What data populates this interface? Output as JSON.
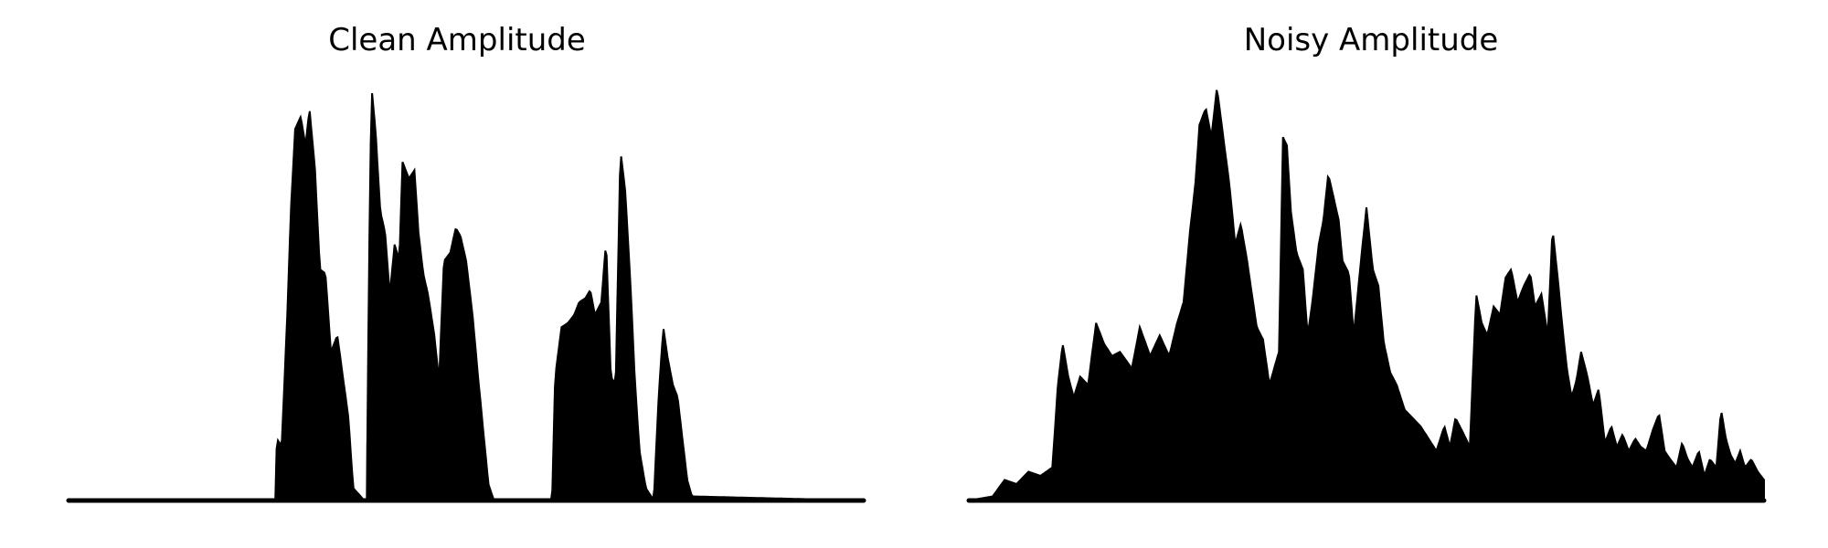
{
  "chart_data": [
    {
      "type": "area",
      "title": "Clean Amplitude",
      "axes_visible": false,
      "grid": false,
      "color": "#000000",
      "xlim": [
        0,
        1
      ],
      "ylim": [
        0,
        1
      ],
      "envelope": [
        [
          0.0,
          0.0
        ],
        [
          0.26,
          0.0
        ],
        [
          0.262,
          0.15
        ],
        [
          0.268,
          0.13
        ],
        [
          0.275,
          0.45
        ],
        [
          0.28,
          0.72
        ],
        [
          0.285,
          0.9
        ],
        [
          0.292,
          0.93
        ],
        [
          0.298,
          0.86
        ],
        [
          0.303,
          0.95
        ],
        [
          0.31,
          0.8
        ],
        [
          0.316,
          0.56
        ],
        [
          0.323,
          0.55
        ],
        [
          0.33,
          0.36
        ],
        [
          0.338,
          0.4
        ],
        [
          0.345,
          0.3
        ],
        [
          0.352,
          0.2
        ],
        [
          0.358,
          0.03
        ],
        [
          0.372,
          0.0
        ],
        [
          0.375,
          0.0
        ],
        [
          0.378,
          0.6
        ],
        [
          0.381,
          1.0
        ],
        [
          0.386,
          0.9
        ],
        [
          0.392,
          0.7
        ],
        [
          0.398,
          0.65
        ],
        [
          0.404,
          0.5
        ],
        [
          0.41,
          0.62
        ],
        [
          0.416,
          0.58
        ],
        [
          0.42,
          0.82
        ],
        [
          0.428,
          0.78
        ],
        [
          0.435,
          0.8
        ],
        [
          0.44,
          0.65
        ],
        [
          0.446,
          0.55
        ],
        [
          0.452,
          0.5
        ],
        [
          0.46,
          0.4
        ],
        [
          0.466,
          0.29
        ],
        [
          0.472,
          0.58
        ],
        [
          0.48,
          0.6
        ],
        [
          0.487,
          0.66
        ],
        [
          0.493,
          0.64
        ],
        [
          0.5,
          0.58
        ],
        [
          0.508,
          0.45
        ],
        [
          0.515,
          0.3
        ],
        [
          0.52,
          0.2
        ],
        [
          0.528,
          0.04
        ],
        [
          0.535,
          0.0
        ],
        [
          0.608,
          0.0
        ],
        [
          0.612,
          0.3
        ],
        [
          0.62,
          0.42
        ],
        [
          0.628,
          0.43
        ],
        [
          0.636,
          0.45
        ],
        [
          0.642,
          0.48
        ],
        [
          0.65,
          0.49
        ],
        [
          0.656,
          0.51
        ],
        [
          0.662,
          0.45
        ],
        [
          0.67,
          0.48
        ],
        [
          0.676,
          0.63
        ],
        [
          0.682,
          0.3
        ],
        [
          0.688,
          0.28
        ],
        [
          0.694,
          0.85
        ],
        [
          0.7,
          0.75
        ],
        [
          0.706,
          0.55
        ],
        [
          0.712,
          0.3
        ],
        [
          0.718,
          0.12
        ],
        [
          0.726,
          0.03
        ],
        [
          0.736,
          0.0
        ],
        [
          0.742,
          0.25
        ],
        [
          0.748,
          0.42
        ],
        [
          0.753,
          0.35
        ],
        [
          0.76,
          0.28
        ],
        [
          0.766,
          0.25
        ],
        [
          0.772,
          0.15
        ],
        [
          0.778,
          0.05
        ],
        [
          0.784,
          0.01
        ],
        [
          1.0,
          0.0
        ]
      ]
    },
    {
      "type": "area",
      "title": "Noisy Amplitude",
      "axes_visible": false,
      "grid": false,
      "color": "#000000",
      "xlim": [
        0,
        1
      ],
      "ylim": [
        0,
        1
      ],
      "envelope": [
        [
          0.0,
          0.0
        ],
        [
          0.03,
          0.01
        ],
        [
          0.045,
          0.05
        ],
        [
          0.06,
          0.04
        ],
        [
          0.075,
          0.07
        ],
        [
          0.09,
          0.06
        ],
        [
          0.105,
          0.08
        ],
        [
          0.112,
          0.28
        ],
        [
          0.118,
          0.38
        ],
        [
          0.125,
          0.3
        ],
        [
          0.132,
          0.25
        ],
        [
          0.14,
          0.3
        ],
        [
          0.15,
          0.28
        ],
        [
          0.16,
          0.43
        ],
        [
          0.17,
          0.38
        ],
        [
          0.18,
          0.35
        ],
        [
          0.19,
          0.36
        ],
        [
          0.205,
          0.32
        ],
        [
          0.215,
          0.42
        ],
        [
          0.228,
          0.35
        ],
        [
          0.24,
          0.4
        ],
        [
          0.252,
          0.35
        ],
        [
          0.262,
          0.43
        ],
        [
          0.27,
          0.48
        ],
        [
          0.278,
          0.65
        ],
        [
          0.285,
          0.77
        ],
        [
          0.29,
          0.91
        ],
        [
          0.298,
          0.95
        ],
        [
          0.305,
          0.88
        ],
        [
          0.312,
          1.0
        ],
        [
          0.32,
          0.88
        ],
        [
          0.328,
          0.76
        ],
        [
          0.335,
          0.62
        ],
        [
          0.342,
          0.67
        ],
        [
          0.35,
          0.58
        ],
        [
          0.356,
          0.5
        ],
        [
          0.362,
          0.42
        ],
        [
          0.37,
          0.39
        ],
        [
          0.378,
          0.28
        ],
        [
          0.384,
          0.32
        ],
        [
          0.39,
          0.36
        ],
        [
          0.395,
          0.88
        ],
        [
          0.4,
          0.86
        ],
        [
          0.405,
          0.7
        ],
        [
          0.412,
          0.6
        ],
        [
          0.42,
          0.56
        ],
        [
          0.426,
          0.4
        ],
        [
          0.432,
          0.48
        ],
        [
          0.44,
          0.62
        ],
        [
          0.446,
          0.68
        ],
        [
          0.452,
          0.79
        ],
        [
          0.458,
          0.74
        ],
        [
          0.465,
          0.68
        ],
        [
          0.47,
          0.58
        ],
        [
          0.478,
          0.55
        ],
        [
          0.484,
          0.4
        ],
        [
          0.492,
          0.56
        ],
        [
          0.5,
          0.71
        ],
        [
          0.508,
          0.56
        ],
        [
          0.515,
          0.52
        ],
        [
          0.522,
          0.38
        ],
        [
          0.53,
          0.31
        ],
        [
          0.538,
          0.28
        ],
        [
          0.548,
          0.22
        ],
        [
          0.558,
          0.2
        ],
        [
          0.568,
          0.18
        ],
        [
          0.578,
          0.15
        ],
        [
          0.588,
          0.12
        ],
        [
          0.598,
          0.18
        ],
        [
          0.605,
          0.13
        ],
        [
          0.612,
          0.2
        ],
        [
          0.62,
          0.17
        ],
        [
          0.63,
          0.13
        ],
        [
          0.638,
          0.5
        ],
        [
          0.645,
          0.43
        ],
        [
          0.652,
          0.4
        ],
        [
          0.66,
          0.47
        ],
        [
          0.668,
          0.45
        ],
        [
          0.675,
          0.54
        ],
        [
          0.682,
          0.56
        ],
        [
          0.69,
          0.48
        ],
        [
          0.698,
          0.52
        ],
        [
          0.706,
          0.55
        ],
        [
          0.712,
          0.47
        ],
        [
          0.72,
          0.5
        ],
        [
          0.728,
          0.4
        ],
        [
          0.734,
          0.66
        ],
        [
          0.74,
          0.55
        ],
        [
          0.746,
          0.43
        ],
        [
          0.752,
          0.32
        ],
        [
          0.758,
          0.25
        ],
        [
          0.764,
          0.29
        ],
        [
          0.77,
          0.36
        ],
        [
          0.778,
          0.3
        ],
        [
          0.785,
          0.23
        ],
        [
          0.792,
          0.27
        ],
        [
          0.8,
          0.14
        ],
        [
          0.808,
          0.18
        ],
        [
          0.815,
          0.13
        ],
        [
          0.822,
          0.16
        ],
        [
          0.83,
          0.12
        ],
        [
          0.838,
          0.15
        ],
        [
          0.845,
          0.13
        ],
        [
          0.852,
          0.12
        ],
        [
          0.86,
          0.17
        ],
        [
          0.868,
          0.21
        ],
        [
          0.875,
          0.12
        ],
        [
          0.882,
          0.1
        ],
        [
          0.89,
          0.08
        ],
        [
          0.897,
          0.14
        ],
        [
          0.904,
          0.1
        ],
        [
          0.91,
          0.08
        ],
        [
          0.918,
          0.12
        ],
        [
          0.925,
          0.06
        ],
        [
          0.932,
          0.1
        ],
        [
          0.94,
          0.08
        ],
        [
          0.946,
          0.22
        ],
        [
          0.952,
          0.15
        ],
        [
          0.958,
          0.11
        ],
        [
          0.964,
          0.09
        ],
        [
          0.97,
          0.12
        ],
        [
          0.976,
          0.08
        ],
        [
          0.984,
          0.1
        ],
        [
          0.992,
          0.07
        ],
        [
          1.0,
          0.05
        ]
      ]
    }
  ]
}
